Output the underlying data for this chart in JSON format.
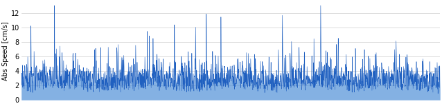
{
  "n_points": 2000,
  "seed": 123,
  "ylim": [
    0,
    13.5
  ],
  "yticks": [
    0,
    2,
    4,
    6,
    8,
    10,
    12
  ],
  "ylabel": "Abs Speed [cm/s]",
  "line_color": "#2060C0",
  "fill_color": "#5090D8",
  "line_width": 0.4,
  "background_color": "#ffffff",
  "grid_color": "#cccccc",
  "grid_linewidth": 0.5,
  "fig_width": 6.38,
  "fig_height": 1.54,
  "dpi": 100,
  "ylabel_fontsize": 7,
  "tick_fontsize": 7
}
